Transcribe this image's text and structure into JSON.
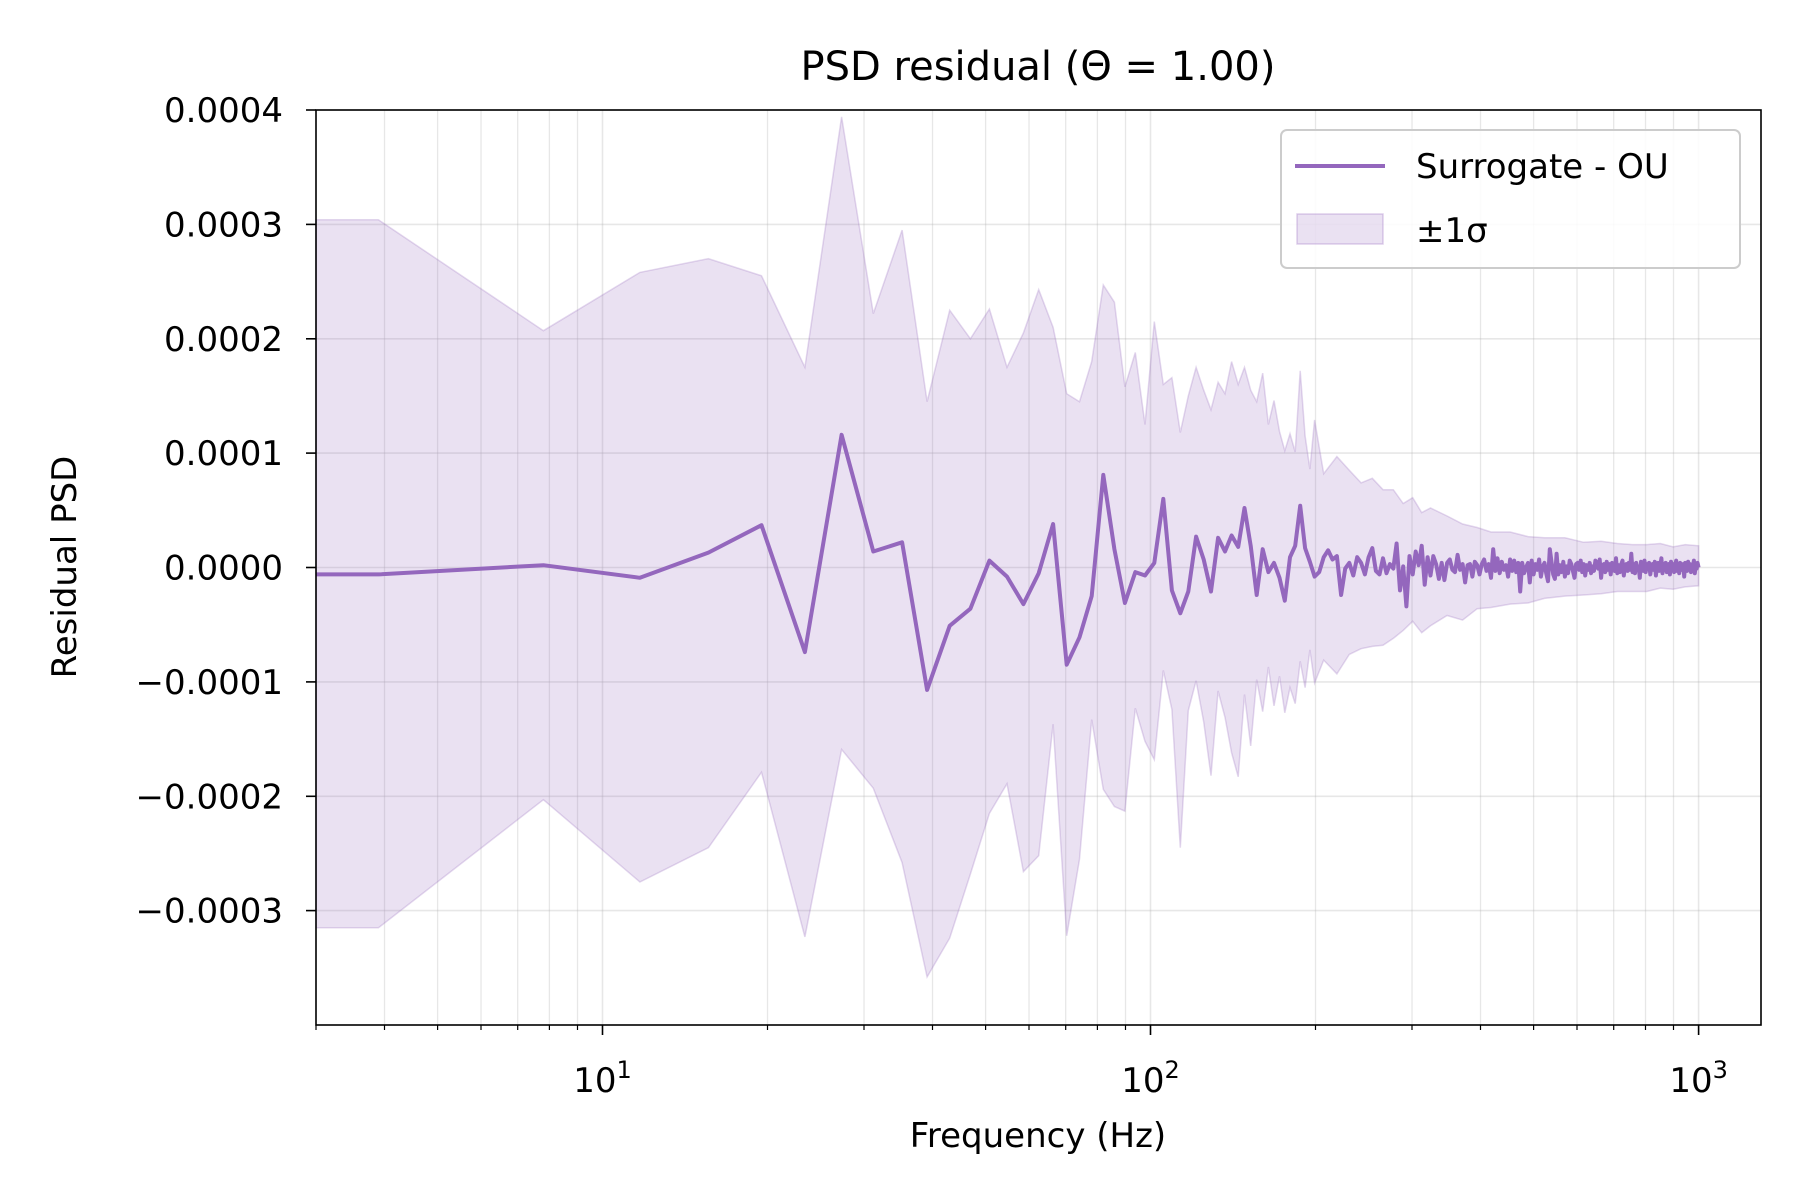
{
  "chart_data": {
    "type": "line",
    "title": "PSD residual (Θ = 1.00)",
    "xlabel": "Frequency (Hz)",
    "ylabel": "Residual PSD",
    "x_scale": "log",
    "xlim": [
      3.0,
      1300
    ],
    "ylim": [
      -0.0004,
      0.0004
    ],
    "grid": true,
    "legend_position": "top-right",
    "x_ticks": [
      {
        "value": 10,
        "base": "10",
        "exp": "1"
      },
      {
        "value": 100,
        "base": "10",
        "exp": "2"
      },
      {
        "value": 1000,
        "base": "10",
        "exp": "3"
      }
    ],
    "y_ticks": [
      {
        "value": 0.0004,
        "label": "0.0004"
      },
      {
        "value": 0.0003,
        "label": "0.0003"
      },
      {
        "value": 0.0002,
        "label": "0.0002"
      },
      {
        "value": 0.0001,
        "label": "0.0001"
      },
      {
        "value": 0.0,
        "label": "0.0000"
      },
      {
        "value": -0.0001,
        "label": "−0.0001"
      },
      {
        "value": -0.0002,
        "label": "−0.0002"
      },
      {
        "value": -0.0003,
        "label": "−0.0003"
      }
    ],
    "series": [
      {
        "name": "Surrogate - OU",
        "color": "#9467bd",
        "x": [
          3.0,
          3.9,
          7.8,
          11.7,
          15.6,
          19.5,
          23.4,
          27.3,
          31.2,
          35.2,
          39.1,
          43.0,
          46.9,
          50.8,
          54.7,
          58.6,
          62.5,
          66.4,
          70.3,
          74.2,
          78.1,
          82.0,
          85.9,
          89.8,
          93.8,
          97.7,
          101.6,
          105.5,
          109.4,
          113.3,
          117.2,
          121.1,
          125.0,
          128.9,
          132.8,
          136.7,
          140.6,
          144.5,
          148.4,
          152.3,
          156.2,
          160.2,
          164.1,
          168.0,
          171.9,
          175.8,
          179.7,
          183.6,
          187.5,
          191.4,
          195.3,
          199.2,
          203.1,
          207.0,
          210.9,
          214.8,
          218.8,
          222.7,
          226.6,
          230.5,
          234.4,
          238.3,
          242.2,
          246.1,
          250.0,
          253.9,
          257.8,
          261.7,
          265.6,
          269.5,
          273.4,
          277.3,
          281.2,
          285.2,
          289.1,
          293.0,
          296.9,
          300.8,
          304.7,
          308.6,
          312.5,
          316.4,
          320.3,
          324.2,
          328.1,
          332.0,
          335.9,
          339.8,
          343.8,
          347.7,
          351.6,
          355.5,
          359.4,
          363.3,
          367.2,
          371.1,
          375.0,
          378.9,
          382.8,
          386.7,
          390.6,
          394.5,
          398.4,
          402.3,
          406.2,
          410.2,
          414.1,
          418.0,
          421.9,
          425.8,
          429.7,
          433.6,
          437.5,
          441.4,
          445.3,
          449.2,
          453.1,
          457.0,
          460.9,
          464.8,
          468.8,
          472.7,
          476.6,
          480.5,
          484.4,
          488.3,
          492.2,
          496.1,
          500.0,
          503.9,
          507.8,
          511.7,
          515.6,
          519.5,
          523.4,
          527.3,
          531.2,
          535.2,
          539.1,
          543.0,
          546.9,
          550.8,
          554.7,
          558.6,
          562.5,
          566.4,
          570.3,
          574.2,
          578.1,
          582.0,
          585.9,
          589.8,
          593.8,
          597.7,
          601.6,
          605.5,
          609.4,
          613.3,
          617.2,
          621.1,
          625.0,
          628.9,
          632.8,
          636.7,
          640.6,
          644.5,
          648.4,
          652.3,
          656.2,
          660.2,
          664.1,
          668.0,
          671.9,
          675.8,
          679.7,
          683.6,
          687.5,
          691.4,
          695.3,
          699.2,
          703.1,
          707.0,
          710.9,
          714.8,
          718.8,
          722.7,
          726.6,
          730.5,
          734.4,
          738.3,
          742.2,
          746.1,
          750.0,
          753.9,
          757.8,
          761.7,
          765.6,
          769.5,
          773.4,
          777.3,
          781.2,
          785.2,
          789.1,
          793.0,
          796.9,
          800.8,
          804.7,
          808.6,
          812.5,
          816.4,
          820.3,
          824.2,
          828.1,
          832.0,
          835.9,
          839.8,
          843.8,
          847.7,
          851.6,
          855.5,
          859.4,
          863.3,
          867.2,
          871.1,
          875.0,
          878.9,
          882.8,
          886.7,
          890.6,
          894.5,
          898.4,
          902.3,
          906.2,
          910.2,
          914.1,
          918.0,
          921.9,
          925.8,
          929.7,
          933.6,
          937.5,
          941.4,
          945.3,
          949.2,
          953.1,
          957.0,
          960.9,
          964.8,
          968.8,
          972.7,
          976.6,
          980.5,
          984.4,
          988.3,
          992.2,
          996.1,
          1000.0
        ],
        "y": [
          -6e-06,
          -6e-06,
          2e-06,
          -9e-06,
          1.3e-05,
          3.7e-05,
          -7.4e-05,
          0.000116,
          1.4e-05,
          2.2e-05,
          -0.000107,
          -5.1e-05,
          -3.6e-05,
          6e-06,
          -8e-06,
          -3.2e-05,
          -5e-06,
          3.8e-05,
          -8.5e-05,
          -6.1e-05,
          -2.5e-05,
          8.1e-05,
          1.6e-05,
          -3.1e-05,
          -4e-06,
          -7e-06,
          4e-06,
          6e-05,
          -2e-05,
          -4e-05,
          -2.1e-05,
          2.7e-05,
          7e-06,
          -2.1e-05,
          2.6e-05,
          1.4e-05,
          2.8e-05,
          1.8e-05,
          5.2e-05,
          1.9e-05,
          -2.4e-05,
          1.6e-05,
          -4e-06,
          4e-06,
          -9e-06,
          -2.9e-05,
          9e-06,
          1.9e-05,
          5.4e-05,
          1.7e-05,
          5e-06,
          -8e-06,
          -4e-06,
          9e-06,
          1.5e-05,
          7e-06,
          1e-05,
          -2.4e-05,
          -1e-06,
          4e-06,
          -7e-06,
          9e-06,
          4e-06,
          -6e-06,
          9e-06,
          1.7e-05,
          -3e-06,
          -6e-06,
          8e-06,
          -5e-06,
          3e-06,
          -1e-06,
          2.1e-05,
          -2e-05,
          1e-06,
          -3.4e-05,
          1e-05,
          -6e-06,
          1.4e-05,
          2e-06,
          1.9e-05,
          -1.5e-05,
          9e-06,
          -7e-06,
          1e-05,
          3e-06,
          -1e-05,
          4e-06,
          -1.1e-05,
          4e-06,
          7e-06,
          -2e-06,
          -4e-06,
          1.1e-05,
          -2e-06,
          3e-06,
          -1.3e-05,
          2e-06,
          3e-06,
          -8e-06,
          5e-06,
          2e-06,
          -6e-06,
          3e-06,
          7e-06,
          -3e-06,
          3e-06,
          -9e-06,
          1.6e-05,
          -3e-06,
          8e-06,
          -5e-06,
          5e-06,
          -2e-06,
          2e-06,
          -8e-06,
          7e-06,
          -3e-06,
          6e-06,
          -4e-06,
          4e-06,
          -2.1e-05,
          4e-06,
          -5e-06,
          0.0,
          4e-06,
          -1.3e-05,
          6e-06,
          -6e-06,
          3e-06,
          -2e-06,
          7e-06,
          -8e-06,
          1e-06,
          4e-06,
          -5e-06,
          -1.2e-05,
          1.6e-05,
          5e-06,
          -6e-06,
          -1e-05,
          1.2e-05,
          -6e-06,
          2e-06,
          -4e-06,
          5e-06,
          -8e-06,
          1e-06,
          -5e-06,
          6e-06,
          3e-06,
          -3e-06,
          -9e-06,
          3e-06,
          4e-06,
          -2e-06,
          6e-06,
          -4e-06,
          3e-06,
          -7e-06,
          2e-06,
          -2e-06,
          4e-06,
          -5e-06,
          1e-06,
          -3e-06,
          6e-06,
          4e-06,
          -1e-06,
          7e-06,
          -9e-06,
          2e-06,
          3e-06,
          -4e-06,
          5e-06,
          -2e-06,
          3e-06,
          -6e-06,
          4e-06,
          1e-06,
          -3e-06,
          8e-06,
          -5e-06,
          2e-06,
          -4e-06,
          3e-06,
          6e-06,
          -7e-06,
          2e-06,
          3e-06,
          -3e-06,
          4e-06,
          -2e-06,
          1.2e-05,
          -4e-06,
          3e-06,
          -5e-06,
          4e-06,
          -2e-06,
          1e-06,
          -9e-06,
          5e-06,
          2e-06,
          -3e-06,
          6e-06,
          -4e-06,
          3e-06,
          -1e-06,
          4e-06,
          -6e-06,
          2e-06,
          3e-06,
          -2e-06,
          5e-06,
          -7e-06,
          1e-06,
          4e-06,
          -3e-06,
          2e-06,
          8e-06,
          -5e-06,
          3e-06,
          -2e-06,
          4e-06,
          -4e-06,
          1e-06,
          3e-06,
          -6e-06,
          5e-06,
          -2e-06,
          3e-06,
          -4e-06,
          2e-06,
          6e-06,
          -3e-06,
          1e-06,
          -5e-06,
          4e-06,
          2e-06,
          -2e-06,
          3e-06,
          -8e-06,
          4e-06,
          1e-06,
          -3e-06,
          5e-06,
          -2e-06,
          3e-06,
          -4e-06,
          2e-06,
          1e-06,
          6e-06,
          -5e-06,
          2e-06,
          -1e-06,
          4e-06,
          0.0
        ]
      }
    ],
    "band": {
      "name": "±1σ",
      "color": "#9467bd",
      "x": [
        3.0,
        3.9,
        7.8,
        11.7,
        15.6,
        19.5,
        23.4,
        27.3,
        31.2,
        35.2,
        39.1,
        43.0,
        46.9,
        50.8,
        54.7,
        58.6,
        62.5,
        66.4,
        70.3,
        74.2,
        78.1,
        82.0,
        85.9,
        89.8,
        93.8,
        97.7,
        101.6,
        105.5,
        109.4,
        113.3,
        117.2,
        121.1,
        125.0,
        128.9,
        132.8,
        136.7,
        140.6,
        144.5,
        148.4,
        152.3,
        156.2,
        160.2,
        164.1,
        168.0,
        171.9,
        175.8,
        179.7,
        183.6,
        187.5,
        191.4,
        195.3,
        199.2,
        207.0,
        218.8,
        230.5,
        242.2,
        253.9,
        265.6,
        277.3,
        289.1,
        300.8,
        312.5,
        324.2,
        347.7,
        371.1,
        394.5,
        418.0,
        453.1,
        488.3,
        523.4,
        570.3,
        617.2,
        664.1,
        710.9,
        757.8,
        804.7,
        851.6,
        898.4,
        945.3,
        1000.0
      ],
      "upper": [
        0.000304,
        0.000304,
        0.000207,
        0.000258,
        0.00027,
        0.000255,
        0.000175,
        0.000394,
        0.000222,
        0.000295,
        0.000145,
        0.000225,
        0.0002,
        0.000226,
        0.000175,
        0.000205,
        0.000243,
        0.00021,
        0.000152,
        0.000145,
        0.00018,
        0.000247,
        0.000232,
        0.000158,
        0.000188,
        0.000125,
        0.000215,
        0.00016,
        0.000166,
        0.000118,
        0.00015,
        0.000175,
        0.000155,
        0.000138,
        0.000162,
        0.000152,
        0.00018,
        0.00016,
        0.000175,
        0.000155,
        0.000145,
        0.00017,
        0.000125,
        0.000146,
        0.000119,
        0.000102,
        0.000117,
        0.000101,
        0.000172,
        0.000115,
        8.6e-05,
        0.000129,
        8.2e-05,
        9.7e-05,
        8.5e-05,
        7.4e-05,
        7.8e-05,
        6.8e-05,
        6.8e-05,
        5.6e-05,
        6.1e-05,
        4.8e-05,
        5.2e-05,
        4.5e-05,
        3.8e-05,
        3.5e-05,
        3.1e-05,
        3.1e-05,
        2.7e-05,
        2.6e-05,
        2.6e-05,
        2.2e-05,
        2.3e-05,
        2.1e-05,
        2e-05,
        2e-05,
        2.1e-05,
        1.8e-05,
        2e-05,
        1.9e-05
      ],
      "lower": [
        -0.000315,
        -0.000315,
        -0.000203,
        -0.000275,
        -0.000245,
        -0.000179,
        -0.000323,
        -0.000159,
        -0.000193,
        -0.000258,
        -0.000358,
        -0.000324,
        -0.000268,
        -0.000215,
        -0.000189,
        -0.000266,
        -0.000252,
        -0.000137,
        -0.000322,
        -0.000255,
        -0.000133,
        -0.000194,
        -0.000209,
        -0.000213,
        -0.000123,
        -0.000152,
        -0.000168,
        -9e-05,
        -0.000124,
        -0.000245,
        -0.000125,
        -9.9e-05,
        -0.000135,
        -0.000182,
        -0.000108,
        -0.000131,
        -0.000162,
        -0.000183,
        -0.000111,
        -0.000156,
        -9.8e-05,
        -0.000126,
        -8.7e-05,
        -0.000121,
        -9.5e-05,
        -0.000127,
        -0.000105,
        -0.000119,
        -8.2e-05,
        -0.000105,
        -7.2e-05,
        -0.000101,
        -8.1e-05,
        -9.3e-05,
        -7.6e-05,
        -7.1e-05,
        -6.9e-05,
        -6.8e-05,
        -6.2e-05,
        -5.5e-05,
        -4.7e-05,
        -5.7e-05,
        -5.1e-05,
        -4.2e-05,
        -4.6e-05,
        -3.6e-05,
        -3.5e-05,
        -3.2e-05,
        -3.1e-05,
        -2.7e-05,
        -2.5e-05,
        -2.4e-05,
        -2.3e-05,
        -2.1e-05,
        -2.1e-05,
        -2.1e-05,
        -1.8e-05,
        -1.9e-05,
        -1.7e-05,
        -1.6e-05
      ]
    }
  }
}
